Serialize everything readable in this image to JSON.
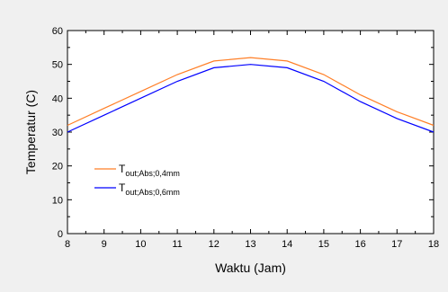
{
  "chart_data": {
    "type": "line",
    "xlabel": "Waktu (Jam)",
    "ylabel": "Temperatur (C)",
    "xlim": [
      8,
      18
    ],
    "ylim": [
      0,
      60
    ],
    "x_ticks": [
      8,
      9,
      10,
      11,
      12,
      13,
      14,
      15,
      16,
      17,
      18
    ],
    "y_ticks": [
      0,
      10,
      20,
      30,
      40,
      50,
      60
    ],
    "grid": false,
    "legend_position": "bottom-left",
    "x": [
      8,
      9,
      10,
      11,
      12,
      13,
      14,
      15,
      16,
      17,
      18
    ],
    "series": [
      {
        "name": "T",
        "name_subscript": "out;Abs;0,4mm",
        "color": "#ff7f27",
        "values": [
          32,
          37,
          42,
          47,
          51,
          52,
          51,
          47,
          41,
          36,
          32
        ]
      },
      {
        "name": "T",
        "name_subscript": "out;Abs;0,6mm",
        "color": "#0000ff",
        "values": [
          30,
          35,
          40,
          45,
          49,
          50,
          49,
          45,
          39,
          34,
          30
        ]
      }
    ]
  }
}
